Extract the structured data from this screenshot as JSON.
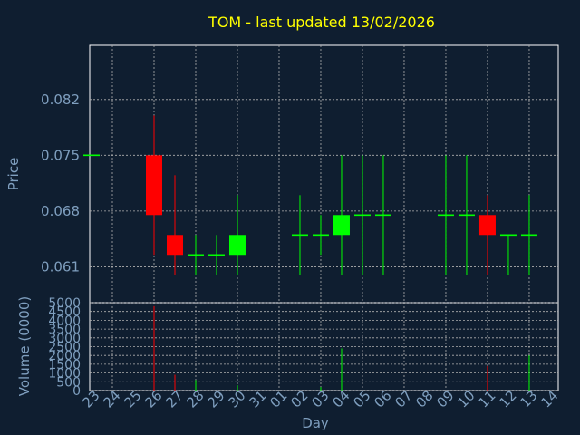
{
  "chart_data": {
    "type": "candlestick",
    "title": "TOM - last updated 13/02/2026",
    "ylabel": "Price",
    "volume_label": "Volume (0000)",
    "xlabel": "Day",
    "x_ticks": [
      "23",
      "24",
      "25",
      "26",
      "27",
      "28",
      "29",
      "30",
      "31",
      "01",
      "02",
      "03",
      "04",
      "05",
      "06",
      "07",
      "08",
      "09",
      "10",
      "11",
      "12",
      "13",
      "14"
    ],
    "price_ticks": [
      "0.082",
      "0.075",
      "0.068",
      "0.061"
    ],
    "volume_ticks": [
      "5000",
      "4500",
      "4000",
      "3500",
      "3000",
      "2500",
      "2000",
      "1500",
      "1000",
      "500",
      "0"
    ],
    "price_ylim": [
      0.0565,
      0.0888
    ],
    "volume_ylim": [
      0,
      5000
    ],
    "grid": true,
    "candles": [
      {
        "day": "23",
        "open": 0.075,
        "high": 0.075,
        "low": 0.075,
        "close": 0.075,
        "volume": 0
      },
      {
        "day": "26",
        "open": 0.075,
        "high": 0.08,
        "low": 0.0625,
        "close": 0.0675,
        "volume": 4800
      },
      {
        "day": "27",
        "open": 0.065,
        "high": 0.0725,
        "low": 0.06,
        "close": 0.0625,
        "volume": 900
      },
      {
        "day": "28",
        "open": 0.0625,
        "high": 0.065,
        "low": 0.06,
        "close": 0.0625,
        "volume": 600
      },
      {
        "day": "29",
        "open": 0.0625,
        "high": 0.065,
        "low": 0.06,
        "close": 0.0625,
        "volume": 0
      },
      {
        "day": "30",
        "open": 0.0625,
        "high": 0.07,
        "low": 0.06,
        "close": 0.065,
        "volume": 300
      },
      {
        "day": "02",
        "open": 0.065,
        "high": 0.07,
        "low": 0.06,
        "close": 0.065,
        "volume": 0
      },
      {
        "day": "03",
        "open": 0.065,
        "high": 0.0675,
        "low": 0.0625,
        "close": 0.065,
        "volume": 200
      },
      {
        "day": "04",
        "open": 0.065,
        "high": 0.075,
        "low": 0.06,
        "close": 0.0675,
        "volume": 2400
      },
      {
        "day": "05",
        "open": 0.0675,
        "high": 0.075,
        "low": 0.06,
        "close": 0.0675,
        "volume": 0
      },
      {
        "day": "06",
        "open": 0.0675,
        "high": 0.075,
        "low": 0.06,
        "close": 0.0675,
        "volume": 0
      },
      {
        "day": "09",
        "open": 0.0675,
        "high": 0.075,
        "low": 0.06,
        "close": 0.0675,
        "volume": 0
      },
      {
        "day": "10",
        "open": 0.0675,
        "high": 0.075,
        "low": 0.06,
        "close": 0.0675,
        "volume": 0
      },
      {
        "day": "11",
        "open": 0.0675,
        "high": 0.07,
        "low": 0.06,
        "close": 0.065,
        "volume": 1400
      },
      {
        "day": "12",
        "open": 0.065,
        "high": 0.065,
        "low": 0.06,
        "close": 0.065,
        "volume": 0
      },
      {
        "day": "13",
        "open": 0.065,
        "high": 0.07,
        "low": 0.06,
        "close": 0.065,
        "volume": 2000
      }
    ],
    "colors": {
      "background": "#0f1e30",
      "text": "#7f9fbf",
      "title": "#ffff00",
      "axis": "#ffffff",
      "grid": "#b0b0b0",
      "up": "#00ff00",
      "down": "#ff0000"
    }
  }
}
